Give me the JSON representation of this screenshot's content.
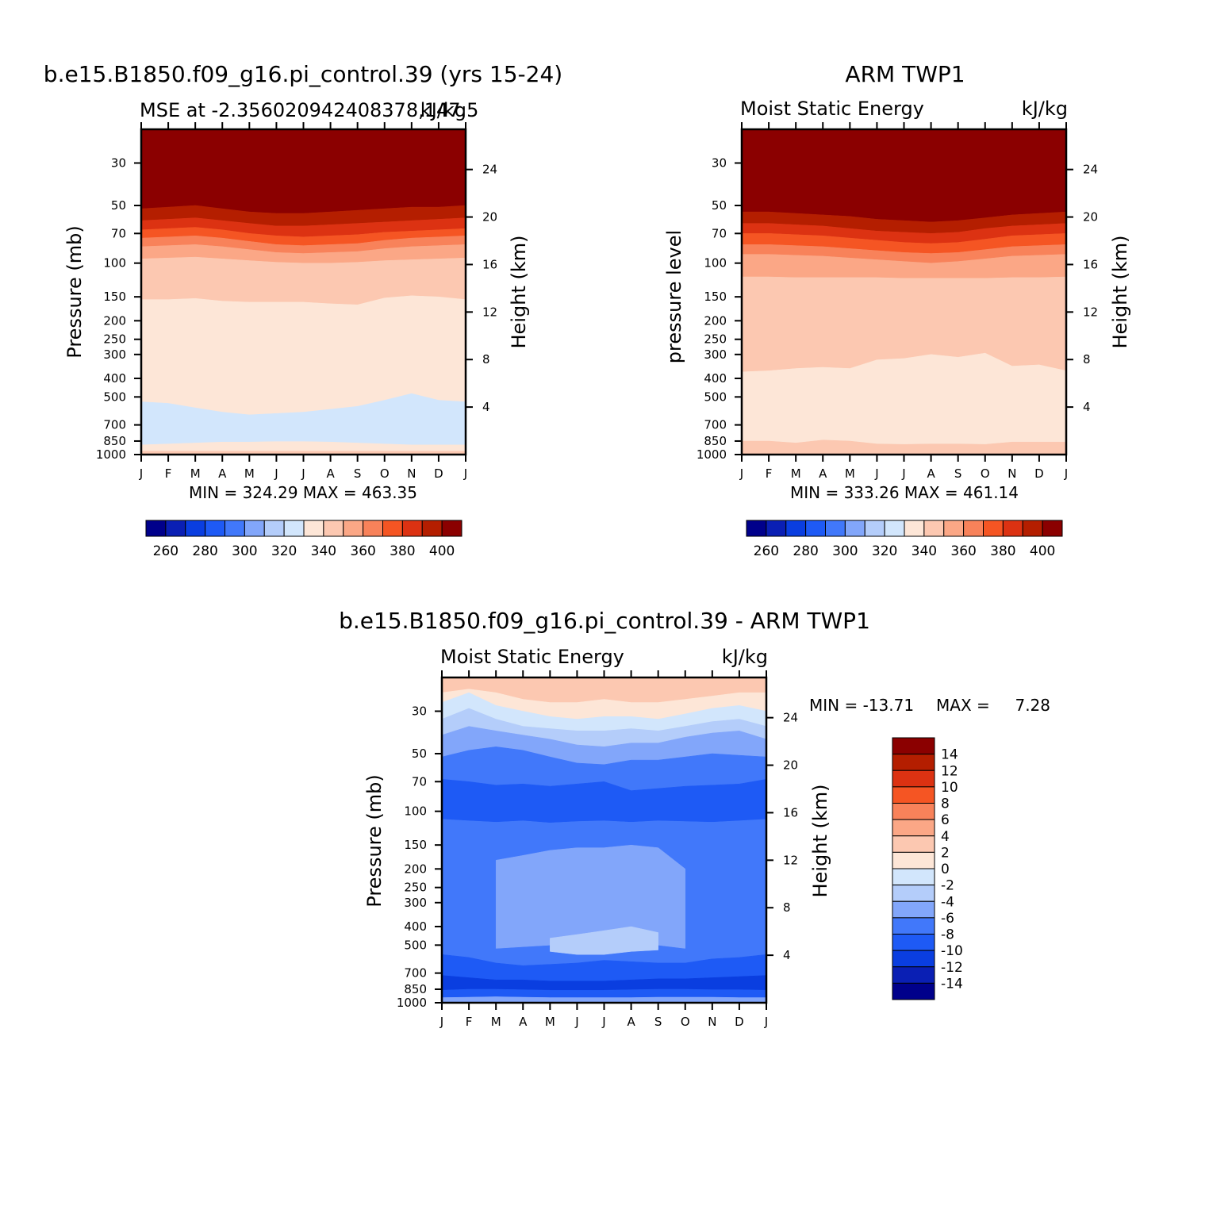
{
  "colors": {
    "mse_levels": [
      "#00008b",
      "#0a1fb4",
      "#0a3ee0",
      "#1e5af5",
      "#4178fa",
      "#82a6fa",
      "#b4cdfa",
      "#d2e6fc",
      "#fde6d7",
      "#fcc8b1",
      "#fba786",
      "#f8825a",
      "#f55523",
      "#dc3212",
      "#b41e00",
      "#8b0000"
    ],
    "diff_levels": [
      "#00008b",
      "#0a1fb4",
      "#0a3ee0",
      "#1e5af5",
      "#4178fa",
      "#82a6fa",
      "#b4cdfa",
      "#d2e6fc",
      "#fde6d7",
      "#fcc8b1",
      "#fba786",
      "#f8825a",
      "#f55523",
      "#dc3212",
      "#b41e00",
      "#8b0000"
    ]
  },
  "chart_data": [
    {
      "type": "heatmap",
      "title": "b.e15.B1850.f09_g16.pi_control.39 (yrs 15-24)",
      "subtitle_left": "MSE at -2.356020942408378,147.5",
      "subtitle_right": "kJ/kg",
      "ylabel": "Pressure (mb)",
      "ylabel_right": "Height (km)",
      "x_ticks": [
        "J",
        "F",
        "M",
        "A",
        "M",
        "J",
        "J",
        "A",
        "S",
        "O",
        "N",
        "D",
        "J"
      ],
      "y_ticks": [
        "30",
        "50",
        "70",
        "100",
        "150",
        "200",
        "250",
        "300",
        "400",
        "500",
        "700",
        "850",
        "1000"
      ],
      "y_right_ticks": [
        "4",
        "8",
        "12",
        "16",
        "20",
        "24"
      ],
      "stats": "MIN = 324.29 MAX = 463.35",
      "colorbar_labels": [
        "260",
        "280",
        "300",
        "320",
        "340",
        "360",
        "380",
        "400"
      ],
      "bands": [
        {
          "level": 15,
          "top": [
            20,
            20,
            20,
            20,
            20,
            20,
            20,
            20,
            20,
            20,
            20,
            20,
            20
          ],
          "bottom": [
            52,
            51,
            50,
            52,
            54,
            55,
            55,
            54,
            53,
            52,
            51,
            51,
            50
          ]
        },
        {
          "level": 14,
          "bottom": [
            60,
            59,
            58,
            60,
            62,
            64,
            64,
            63,
            62,
            61,
            60,
            59,
            58
          ]
        },
        {
          "level": 13,
          "bottom": [
            67,
            66,
            65,
            67,
            70,
            72,
            73,
            72,
            71,
            69,
            68,
            67,
            66
          ]
        },
        {
          "level": 12,
          "bottom": [
            74,
            73,
            72,
            74,
            77,
            80,
            81,
            80,
            79,
            76,
            74,
            73,
            72
          ]
        },
        {
          "level": 11,
          "bottom": [
            82,
            81,
            80,
            82,
            85,
            88,
            89,
            88,
            87,
            84,
            82,
            81,
            80
          ]
        },
        {
          "level": 10,
          "bottom": [
            95,
            94,
            93,
            95,
            97,
            99,
            100,
            100,
            99,
            97,
            96,
            95,
            94
          ]
        },
        {
          "level": 9,
          "bottom": [
            155,
            155,
            153,
            158,
            160,
            160,
            160,
            163,
            165,
            152,
            148,
            150,
            155
          ]
        },
        {
          "level": 8,
          "bottom": [
            530,
            540,
            570,
            600,
            620,
            610,
            600,
            580,
            560,
            520,
            480,
            520,
            530
          ]
        },
        {
          "level": 7,
          "bottom": [
            890,
            880,
            870,
            860,
            860,
            855,
            855,
            860,
            870,
            880,
            890,
            890,
            890
          ]
        },
        {
          "level": 8,
          "bottom": [
            960,
            960,
            960,
            960,
            960,
            960,
            960,
            960,
            960,
            960,
            960,
            960,
            960
          ]
        },
        {
          "level": 9,
          "bottom": [
            1000,
            1000,
            1000,
            1000,
            1000,
            1000,
            1000,
            1000,
            1000,
            1000,
            1000,
            1000,
            1000
          ]
        }
      ]
    },
    {
      "type": "heatmap",
      "title": "ARM TWP1",
      "subtitle_left": "Moist Static Energy",
      "subtitle_right": "kJ/kg",
      "ylabel": "pressure level",
      "ylabel_right": "Height (km)",
      "x_ticks": [
        "J",
        "F",
        "M",
        "A",
        "M",
        "J",
        "J",
        "A",
        "S",
        "O",
        "N",
        "D",
        "J"
      ],
      "y_ticks": [
        "30",
        "50",
        "70",
        "100",
        "150",
        "200",
        "250",
        "300",
        "400",
        "500",
        "700",
        "850",
        "1000"
      ],
      "y_right_ticks": [
        "4",
        "8",
        "12",
        "16",
        "20",
        "24"
      ],
      "stats": "MIN = 333.26 MAX = 461.14",
      "colorbar_labels": [
        "260",
        "280",
        "300",
        "320",
        "340",
        "360",
        "380",
        "400"
      ],
      "bands": [
        {
          "level": 15,
          "top": [
            20,
            20,
            20,
            20,
            20,
            20,
            20,
            20,
            20,
            20,
            20,
            20,
            20
          ],
          "bottom": [
            54,
            54,
            55,
            56,
            57,
            59,
            60,
            61,
            60,
            58,
            56,
            55,
            54
          ]
        },
        {
          "level": 14,
          "bottom": [
            62,
            62,
            63,
            64,
            66,
            68,
            69,
            70,
            69,
            66,
            64,
            63,
            62
          ]
        },
        {
          "level": 13,
          "bottom": [
            70,
            70,
            71,
            72,
            74,
            76,
            78,
            79,
            78,
            75,
            72,
            71,
            70
          ]
        },
        {
          "level": 12,
          "bottom": [
            80,
            80,
            81,
            82,
            84,
            86,
            88,
            89,
            88,
            85,
            82,
            81,
            80
          ]
        },
        {
          "level": 11,
          "bottom": [
            90,
            90,
            91,
            92,
            94,
            96,
            98,
            100,
            98,
            95,
            92,
            91,
            90
          ]
        },
        {
          "level": 10,
          "bottom": [
            118,
            118,
            119,
            119,
            119,
            119,
            120,
            120,
            120,
            120,
            119,
            119,
            118
          ]
        },
        {
          "level": 9,
          "bottom": [
            370,
            365,
            355,
            350,
            355,
            320,
            315,
            300,
            310,
            295,
            345,
            340,
            365
          ]
        },
        {
          "level": 8,
          "bottom": [
            850,
            850,
            870,
            840,
            850,
            880,
            885,
            880,
            880,
            885,
            860,
            860,
            860
          ]
        },
        {
          "level": 9,
          "bottom": [
            1000,
            1000,
            1000,
            1000,
            1000,
            1000,
            1000,
            1000,
            1000,
            1000,
            1000,
            1000,
            1000
          ]
        }
      ]
    },
    {
      "type": "heatmap",
      "title": "b.e15.B1850.f09_g16.pi_control.39 - ARM TWP1",
      "subtitle_left": "Moist Static Energy",
      "subtitle_right": "kJ/kg",
      "ylabel": "Pressure (mb)",
      "ylabel_right": "Height (km)",
      "x_ticks": [
        "J",
        "F",
        "M",
        "A",
        "M",
        "J",
        "J",
        "A",
        "S",
        "O",
        "N",
        "D",
        "J"
      ],
      "y_ticks": [
        "30",
        "50",
        "70",
        "100",
        "150",
        "200",
        "250",
        "300",
        "400",
        "500",
        "700",
        "850",
        "1000"
      ],
      "y_right_ticks": [
        "4",
        "8",
        "12",
        "16",
        "20",
        "24"
      ],
      "stats_min": "MIN = -13.71",
      "stats_max": "MAX =",
      "stats_max_value": "7.28",
      "colorbar_labels": [
        "14",
        "12",
        "10",
        "8",
        "6",
        "4",
        "2",
        "0",
        "-2",
        "-4",
        "-6",
        "-8",
        "-10",
        "-12",
        "-14"
      ],
      "bands": [
        {
          "level": 9,
          "top": [
            20,
            20,
            20,
            20,
            20,
            20,
            20,
            20,
            20,
            20,
            20,
            20,
            20
          ],
          "bottom": [
            24,
            23,
            24,
            26,
            27,
            27,
            26,
            27,
            27,
            26,
            25,
            24,
            24
          ]
        },
        {
          "level": 8,
          "bottom": [
            27,
            24,
            28,
            30,
            32,
            33,
            32,
            32,
            33,
            31,
            29,
            28,
            30
          ]
        },
        {
          "level": 7,
          "bottom": [
            33,
            29,
            33,
            36,
            37,
            38,
            38,
            37,
            38,
            36,
            34,
            33,
            36
          ]
        },
        {
          "level": 6,
          "bottom": [
            40,
            36,
            38,
            40,
            42,
            45,
            46,
            44,
            44,
            41,
            39,
            38,
            42
          ]
        },
        {
          "level": 5,
          "bottom": [
            52,
            48,
            46,
            48,
            52,
            56,
            57,
            54,
            54,
            52,
            50,
            51,
            52
          ]
        },
        {
          "level": 4,
          "bottom": [
            68,
            70,
            73,
            72,
            74,
            72,
            70,
            78,
            76,
            74,
            73,
            72,
            68
          ]
        },
        {
          "level": 3,
          "bottom": [
            110,
            112,
            114,
            112,
            115,
            113,
            112,
            114,
            112,
            113,
            114,
            112,
            110
          ]
        },
        {
          "level": 4,
          "bottom": [
            560,
            580,
            620,
            640,
            630,
            620,
            600,
            610,
            620,
            620,
            590,
            580,
            560
          ]
        },
        {
          "level": 3,
          "bottom": [
            720,
            740,
            760,
            760,
            770,
            770,
            770,
            760,
            750,
            750,
            740,
            730,
            720
          ]
        },
        {
          "level": 2,
          "bottom": [
            860,
            850,
            850,
            855,
            860,
            860,
            860,
            855,
            850,
            850,
            855,
            855,
            860
          ]
        },
        {
          "level": 3,
          "bottom": [
            940,
            935,
            930,
            935,
            940,
            940,
            940,
            940,
            935,
            935,
            935,
            940,
            940
          ]
        },
        {
          "level": 5,
          "bottom": [
            1000,
            1000,
            1000,
            1000,
            1000,
            1000,
            1000,
            1000,
            1000,
            1000,
            1000,
            1000,
            1000
          ]
        }
      ],
      "patches": [
        {
          "level": 5,
          "top": [
            1000,
            1000,
            180,
            170,
            160,
            155,
            155,
            150,
            155,
            200,
            1000,
            1000,
            1000
          ],
          "bottom": [
            1000,
            1000,
            520,
            510,
            500,
            500,
            500,
            500,
            500,
            520,
            1000,
            1000,
            1000
          ]
        },
        {
          "level": 6,
          "top": [
            1000,
            1000,
            1000,
            1000,
            460,
            440,
            420,
            400,
            430,
            1000,
            1000,
            1000,
            1000
          ],
          "bottom": [
            1000,
            1000,
            1000,
            1000,
            540,
            560,
            560,
            540,
            530,
            1000,
            1000,
            1000,
            1000
          ]
        }
      ]
    }
  ]
}
